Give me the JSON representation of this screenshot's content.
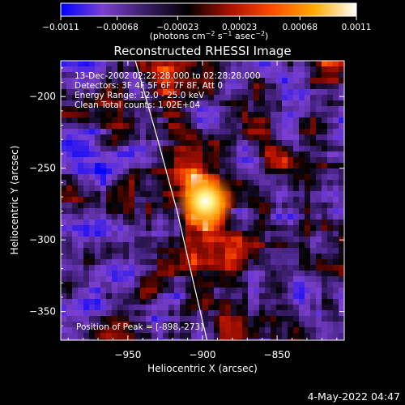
{
  "chart_data": {
    "type": "heatmap",
    "title": "Reconstructed RHESSI Image",
    "xlabel": "Heliocentric X (arcsec)",
    "ylabel": "Heliocentric Y (arcsec)",
    "xlim": [
      -995,
      -805
    ],
    "ylim": [
      -370,
      -175
    ],
    "xticks": [
      -950,
      -900,
      -850
    ],
    "yticks": [
      -200,
      -250,
      -300,
      -350
    ],
    "xtick_labels": [
      "−950",
      "−900",
      "−850"
    ],
    "ytick_labels": [
      "−200",
      "−250",
      "−300",
      "−350"
    ],
    "colorbar": {
      "min": -0.0011,
      "max": 0.0011,
      "ticks": [
        -0.0011,
        -0.00068,
        -0.00023,
        0.00023,
        0.00068,
        0.0011
      ],
      "tick_labels": [
        "−0.0011",
        "−0.00068",
        "−0.00023",
        "0.00023",
        "0.00068",
        "0.0011"
      ],
      "units_text": "(photons cm",
      "units_exp1": "−2",
      "units_mid1": " s",
      "units_exp2": "−1",
      "units_mid2": " asec",
      "units_exp3": "−2",
      "units_end": ")",
      "colors": [
        "#0000ff",
        "#7a3fd0",
        "#3a1e66",
        "#000000",
        "#aa1000",
        "#ff4a00",
        "#ffaa00",
        "#ffffff"
      ]
    },
    "annotations": [
      "13-Dec-2002 02:22:28.000 to 02:28:28.000",
      "Detectors: 3F 4F 5F 6F 7F 8F, Att 0",
      "Energy Range: 12.0 - 25.0 keV",
      "Clean     Total counts: 1.02E+04"
    ],
    "peak_label": "Position of Peak = [-898,-273]",
    "peak": {
      "x": -898,
      "y": -273
    },
    "limb_curve": [
      [
        -945,
        -175
      ],
      [
        -930,
        -230
      ],
      [
        -917,
        -280
      ],
      [
        -906,
        -330
      ],
      [
        -897,
        -370
      ]
    ],
    "colors": {
      "limb": "#ffffff",
      "background": "#000000",
      "text": "#ffffff"
    }
  },
  "footer": {
    "date": "4-May-2022 04:47"
  }
}
